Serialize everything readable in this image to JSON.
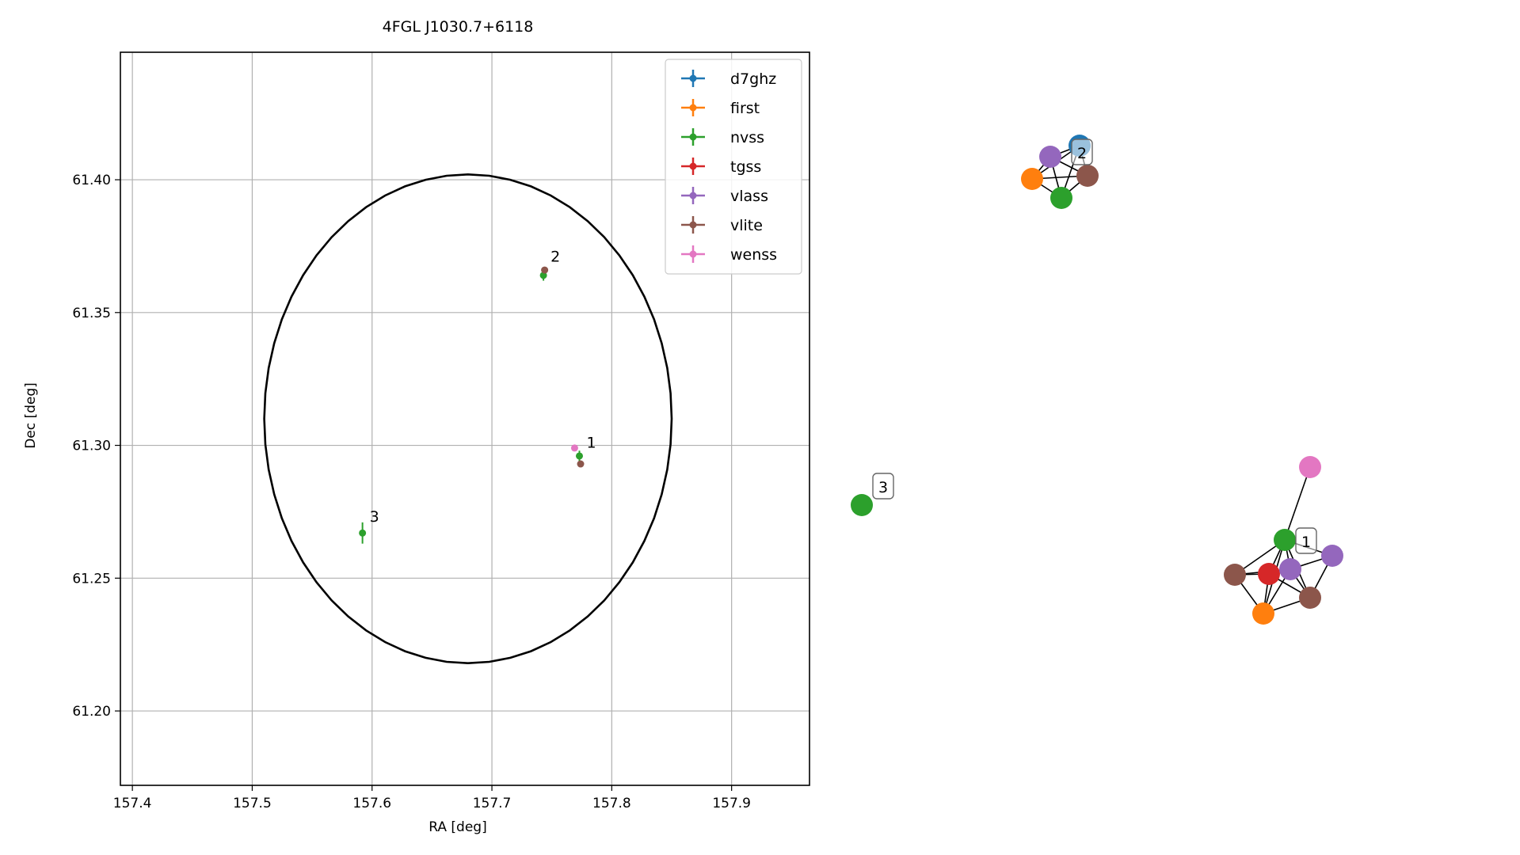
{
  "chart_data": [
    {
      "type": "scatter",
      "title": "4FGL J1030.7+6118",
      "xlabel": "RA [deg]",
      "ylabel": "Dec [deg]",
      "xlim": [
        157.39,
        157.965
      ],
      "ylim": [
        61.172,
        61.448
      ],
      "xticks": [
        157.4,
        157.5,
        157.6,
        157.7,
        157.8,
        157.9
      ],
      "xtick_labels": [
        "157.4",
        "157.5",
        "157.6",
        "157.7",
        "157.8",
        "157.9"
      ],
      "yticks": [
        61.2,
        61.25,
        61.3,
        61.35,
        61.4
      ],
      "ytick_labels": [
        "61.20",
        "61.25",
        "61.30",
        "61.35",
        "61.40"
      ],
      "grid": true,
      "legend_position": "top-right",
      "ellipse": {
        "ra": 157.68,
        "dec": 61.31,
        "semi_ra": 0.17,
        "semi_dec": 0.092
      },
      "series": [
        {
          "name": "d7ghz",
          "color": "#1f77b4",
          "points": []
        },
        {
          "name": "first",
          "color": "#ff7f0e",
          "points": []
        },
        {
          "name": "nvss",
          "color": "#2ca02c",
          "points": [
            {
              "x": 157.773,
              "y": 61.296,
              "ex": 0.002,
              "ey": 0.002
            },
            {
              "x": 157.743,
              "y": 61.364,
              "ex": 0.002,
              "ey": 0.002
            },
            {
              "x": 157.592,
              "y": 61.267,
              "ex": 0.002,
              "ey": 0.004
            }
          ]
        },
        {
          "name": "tgss",
          "color": "#d62728",
          "points": []
        },
        {
          "name": "vlass",
          "color": "#9467bd",
          "points": []
        },
        {
          "name": "vlite",
          "color": "#8c564b",
          "points": [
            {
              "x": 157.744,
              "y": 61.366,
              "ex": 0.0,
              "ey": 0.0
            },
            {
              "x": 157.774,
              "y": 61.293,
              "ex": 0.0,
              "ey": 0.0
            }
          ]
        },
        {
          "name": "wenss",
          "color": "#e377c2",
          "points": [
            {
              "x": 157.769,
              "y": 61.299,
              "ex": 0.0,
              "ey": 0.0
            }
          ]
        }
      ],
      "annotations": [
        {
          "text": "1",
          "x": 157.775,
          "y": 61.298
        },
        {
          "text": "2",
          "x": 157.745,
          "y": 61.368
        },
        {
          "text": "3",
          "x": 157.594,
          "y": 61.27
        }
      ]
    },
    {
      "type": "network",
      "nodes": [
        {
          "id": "a",
          "series": "d7ghz",
          "color": "#1f77b4"
        },
        {
          "id": "b",
          "series": "vlass",
          "color": "#9467bd"
        },
        {
          "id": "c",
          "series": "first",
          "color": "#ff7f0e"
        },
        {
          "id": "d",
          "series": "nvss",
          "color": "#2ca02c"
        },
        {
          "id": "e",
          "series": "vlite",
          "color": "#8c564b"
        },
        {
          "id": "f",
          "series": "nvss",
          "color": "#2ca02c"
        },
        {
          "id": "g",
          "series": "wenss",
          "color": "#e377c2"
        },
        {
          "id": "h",
          "series": "nvss",
          "color": "#2ca02c"
        },
        {
          "id": "i",
          "series": "vlite",
          "color": "#8c564b"
        },
        {
          "id": "j",
          "series": "tgss",
          "color": "#d62728"
        },
        {
          "id": "k",
          "series": "vlass",
          "color": "#9467bd"
        },
        {
          "id": "l",
          "series": "vlass",
          "color": "#9467bd"
        },
        {
          "id": "m",
          "series": "first",
          "color": "#ff7f0e"
        },
        {
          "id": "n",
          "series": "vlite",
          "color": "#8c564b"
        }
      ],
      "edges": [
        [
          "a",
          "b"
        ],
        [
          "a",
          "c"
        ],
        [
          "a",
          "d"
        ],
        [
          "a",
          "e"
        ],
        [
          "b",
          "c"
        ],
        [
          "b",
          "d"
        ],
        [
          "b",
          "e"
        ],
        [
          "c",
          "d"
        ],
        [
          "c",
          "e"
        ],
        [
          "d",
          "e"
        ],
        [
          "h",
          "g"
        ],
        [
          "h",
          "i"
        ],
        [
          "h",
          "j"
        ],
        [
          "h",
          "k"
        ],
        [
          "h",
          "l"
        ],
        [
          "h",
          "m"
        ],
        [
          "h",
          "n"
        ],
        [
          "i",
          "j"
        ],
        [
          "i",
          "m"
        ],
        [
          "j",
          "k"
        ],
        [
          "j",
          "m"
        ],
        [
          "j",
          "n"
        ],
        [
          "k",
          "l"
        ],
        [
          "k",
          "m"
        ],
        [
          "k",
          "n"
        ],
        [
          "l",
          "n"
        ],
        [
          "m",
          "n"
        ],
        [
          "i",
          "k"
        ]
      ],
      "cluster_labels": [
        "1",
        "2",
        "3"
      ]
    }
  ]
}
